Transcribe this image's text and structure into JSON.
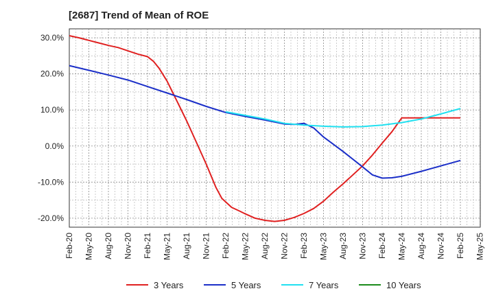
{
  "chart_data": {
    "type": "line",
    "title": "[2687]  Trend of Mean of ROE",
    "xlabel": "",
    "ylabel": "",
    "x_ticks": [
      "Feb-20",
      "May-20",
      "Aug-20",
      "Nov-20",
      "Feb-21",
      "May-21",
      "Aug-21",
      "Nov-21",
      "Feb-22",
      "May-22",
      "Aug-22",
      "Nov-22",
      "Feb-23",
      "May-23",
      "Aug-23",
      "Nov-23",
      "Feb-24",
      "May-24",
      "Aug-24",
      "Nov-24",
      "Feb-25",
      "May-25"
    ],
    "y_ticks": [
      "30.0%",
      "20.0%",
      "10.0%",
      "0.0%",
      "-10.0%",
      "-20.0%"
    ],
    "y_tick_values": [
      30,
      20,
      10,
      0,
      -10,
      -20
    ],
    "ylim": [
      -22.5,
      32.5
    ],
    "grid": true,
    "legend_position": "bottom",
    "series": [
      {
        "name": "3 Years",
        "color": "#e02020",
        "x": [
          0,
          0.5,
          1,
          1.5,
          2,
          2.5,
          3,
          3.5,
          4,
          4.3,
          4.6,
          5,
          5.5,
          6,
          6.5,
          7,
          7.5,
          7.8,
          8,
          8.3,
          8.7,
          9,
          9.5,
          10,
          10.5,
          11,
          11.5,
          12,
          12.5,
          13,
          13.5,
          14,
          14.5,
          15,
          15.5,
          16,
          16.5,
          17,
          17.5,
          18,
          18.5,
          19,
          19.5,
          20
        ],
        "values": [
          30.6,
          30.0,
          29.3,
          28.6,
          27.9,
          27.3,
          26.4,
          25.5,
          24.8,
          23.5,
          21.5,
          18.0,
          12.5,
          7.0,
          1.0,
          -5.0,
          -11.5,
          -14.5,
          -15.5,
          -17.0,
          -18.0,
          -18.8,
          -20.0,
          -20.6,
          -20.9,
          -20.6,
          -19.8,
          -18.7,
          -17.3,
          -15.3,
          -12.8,
          -10.5,
          -8.0,
          -5.5,
          -2.5,
          0.8,
          4.0,
          7.8,
          7.8,
          7.8,
          7.8,
          7.8,
          7.8,
          7.8
        ]
      },
      {
        "name": "5 Years",
        "color": "#1a2ec8",
        "x": [
          0,
          1,
          2,
          3,
          4,
          5,
          6,
          7,
          8,
          9,
          10,
          11,
          11.5,
          12,
          12.5,
          13,
          14,
          15,
          15.5,
          16,
          16.5,
          17,
          18,
          19,
          20
        ],
        "values": [
          22.3,
          21.0,
          19.7,
          18.3,
          16.5,
          14.7,
          12.9,
          11.0,
          9.3,
          8.2,
          7.2,
          6.1,
          6.0,
          6.3,
          5.0,
          2.5,
          -1.5,
          -5.8,
          -8.0,
          -8.9,
          -8.8,
          -8.4,
          -7.0,
          -5.5,
          -4.0
        ]
      },
      {
        "name": "7 Years",
        "color": "#20e0f0",
        "x": [
          8,
          9,
          10,
          11,
          12,
          13,
          14,
          15,
          16,
          17,
          18,
          19,
          20
        ],
        "values": [
          9.5,
          8.5,
          7.5,
          6.3,
          5.8,
          5.5,
          5.3,
          5.4,
          5.8,
          6.5,
          7.5,
          8.9,
          10.4
        ]
      },
      {
        "name": "10 Years",
        "color": "#1a8a1a",
        "x": [],
        "values": []
      }
    ]
  }
}
